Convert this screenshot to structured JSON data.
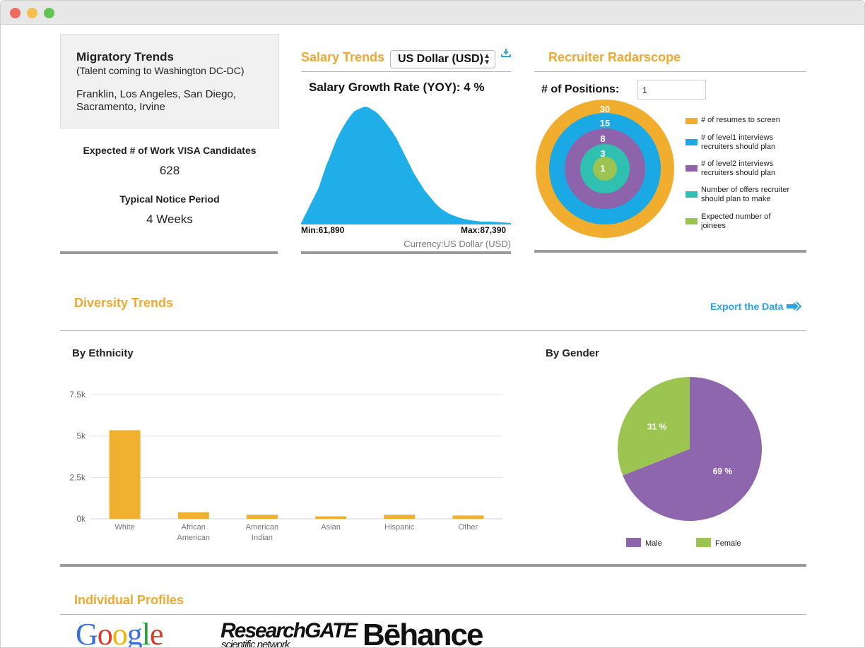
{
  "migratory": {
    "title": "Migratory Trends",
    "subtitle": "(Talent coming to Washington DC-DC)",
    "cities": "Franklin, Los Angeles, San Diego, Sacramento, Irvine",
    "visa_label": "Expected # of Work VISA Candidates",
    "visa_value": "628",
    "notice_label": "Typical Notice Period",
    "notice_value": "4 Weeks"
  },
  "salary": {
    "title": "Salary Trends",
    "currency_selected": "US Dollar (USD)",
    "download_icon": "download-icon",
    "growth_label": "Salary Growth Rate (YOY): 4 %",
    "min_label": "Min:61,890",
    "max_label": "Max:87,390",
    "currency_note": "Currency:US Dollar (USD)",
    "color": "#1faee8"
  },
  "radar": {
    "title": "Recruiter Radarscope",
    "positions_label": "# of Positions:",
    "positions_value": "1",
    "rings": [
      {
        "value": "30",
        "label": "# of resumes to screen",
        "color": "#f0ad2e"
      },
      {
        "value": "15",
        "label": "# of level1 interviews recruiters should plan",
        "color": "#1aa9e5"
      },
      {
        "value": "8",
        "label": "# of level2 interviews recruiters should plan",
        "color": "#8d63ab"
      },
      {
        "value": "3",
        "label": "Number of offers recruiter should plan to make",
        "color": "#2fc0b1"
      },
      {
        "value": "1",
        "label": "Expected number of joinees",
        "color": "#9bc350"
      }
    ]
  },
  "diversity": {
    "title": "Diversity Trends",
    "export_label": "Export the Data",
    "ethnicity_title": "By Ethnicity",
    "gender_title": "By Gender"
  },
  "chart_data": [
    {
      "type": "bar",
      "title": "By Ethnicity",
      "categories": [
        "White",
        "African American",
        "American Indian",
        "Asian",
        "Hispanic",
        "Other"
      ],
      "values": [
        5350,
        400,
        250,
        150,
        250,
        200
      ],
      "ylim": [
        0,
        7500
      ],
      "yticks": [
        "0k",
        "2.5k",
        "5k",
        "7.5k"
      ],
      "color": "#f0b030",
      "grid": true
    },
    {
      "type": "pie",
      "title": "By Gender",
      "slices": [
        {
          "name": "Male",
          "value": 69,
          "label": "69 %",
          "color": "#8e66ad"
        },
        {
          "name": "Female",
          "value": 31,
          "label": "31 %",
          "color": "#9cc451"
        }
      ],
      "legend": "bottom"
    }
  ],
  "profiles": {
    "title": "Individual Profiles",
    "logos": [
      "Google",
      "ResearchGATE",
      "scientific network",
      "Bēhance"
    ]
  }
}
